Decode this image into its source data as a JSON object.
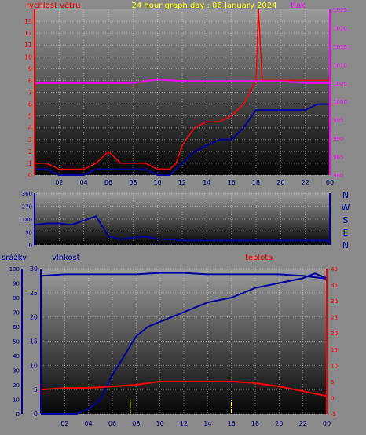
{
  "chart_data": [
    {
      "type": "line",
      "title": "24 hour graph day : 06 January 2024",
      "y_left_label": "rychlost větru",
      "y_right_label": "tlak",
      "x_ticks": [
        "02",
        "04",
        "06",
        "08",
        "10",
        "12",
        "14",
        "16",
        "18",
        "20",
        "22",
        "00"
      ],
      "x_range": [
        0,
        24
      ],
      "y_left_ticks": [
        0,
        1,
        2,
        3,
        4,
        5,
        6,
        7,
        8,
        9,
        10,
        11,
        12,
        13
      ],
      "y_left_range": [
        0,
        14
      ],
      "y_right_ticks": [
        980,
        985,
        990,
        995,
        1000,
        1005,
        1010,
        1015,
        1020,
        1025
      ],
      "y_right_range": [
        980,
        1025
      ],
      "grid": true,
      "colors": {
        "gust": "#ff0000",
        "avg": "#0000a0",
        "pressure": "#ff00ff",
        "left_axis": "#ff0000",
        "right_axis": "#ff00ff",
        "title": "#ffff00"
      },
      "series": [
        {
          "key": "gust",
          "x": [
            0,
            1,
            2,
            3,
            4,
            5,
            6,
            7,
            8,
            9,
            10,
            11,
            11.5,
            12,
            13,
            14,
            15,
            16,
            17,
            18,
            18.2,
            18.5,
            19,
            20,
            21,
            22,
            23,
            24
          ],
          "values": [
            1,
            1,
            0.5,
            0.5,
            0.5,
            1,
            2,
            1,
            1,
            1,
            0.5,
            0.5,
            1,
            2.5,
            4,
            4.5,
            4.5,
            5,
            6,
            8,
            14,
            8,
            8,
            8,
            8,
            8,
            8,
            8
          ]
        },
        {
          "key": "avg",
          "x": [
            0,
            1,
            2,
            3,
            4,
            5,
            6,
            7,
            8,
            9,
            10,
            11,
            12,
            13,
            14,
            15,
            16,
            17,
            18,
            19,
            20,
            21,
            22,
            23,
            24
          ],
          "values": [
            0.5,
            0.5,
            0,
            0,
            0,
            0.5,
            0.5,
            0.5,
            0.5,
            0.5,
            0,
            0,
            1,
            2,
            2.5,
            3,
            3,
            4,
            5.5,
            5.5,
            5.5,
            5.5,
            5.5,
            6,
            6
          ]
        },
        {
          "key": "pressure",
          "x": [
            0,
            2,
            4,
            6,
            8,
            10,
            12,
            14,
            16,
            18,
            20,
            22,
            24
          ],
          "values": [
            1005,
            1005,
            1005,
            1005,
            1005,
            1006,
            1005.5,
            1005.5,
            1005.5,
            1005.5,
            1005.5,
            1005,
            1005
          ]
        }
      ]
    },
    {
      "type": "scatter",
      "y_right_label": "",
      "direction_letters": [
        "N",
        "W",
        "S",
        "E",
        "N"
      ],
      "y_ticks": [
        0,
        90,
        180,
        270,
        360
      ],
      "y_range": [
        0,
        360
      ],
      "x_range": [
        0,
        24
      ],
      "grid": true,
      "colors": {
        "direction": "#0000a0"
      },
      "series": [
        {
          "key": "direction",
          "x": [
            0,
            1,
            2,
            3,
            4,
            5,
            6,
            7,
            8,
            9,
            10,
            11,
            12,
            13,
            14,
            15,
            16,
            17,
            18,
            19,
            20,
            21,
            22,
            23,
            24
          ],
          "values": [
            140,
            150,
            150,
            140,
            170,
            200,
            60,
            40,
            50,
            60,
            40,
            40,
            30,
            30,
            30,
            30,
            30,
            30,
            30,
            30,
            30,
            30,
            30,
            30,
            30
          ]
        }
      ]
    },
    {
      "type": "line",
      "y_left_label": "srážky",
      "y_mid_label": "vlhkost",
      "y_right_label": "teplota",
      "x_ticks": [
        "02",
        "04",
        "06",
        "08",
        "10",
        "12",
        "14",
        "16",
        "18",
        "20",
        "22",
        "00"
      ],
      "x_range": [
        0,
        24
      ],
      "y_left_ticks": [
        0,
        10,
        20,
        30,
        40,
        50,
        60,
        70,
        80,
        90,
        100
      ],
      "y_left_range": [
        0,
        100
      ],
      "y_mid_ticks": [
        0,
        5,
        10,
        15,
        20,
        25,
        30
      ],
      "y_mid_range": [
        0,
        30
      ],
      "y_right_ticks": [
        -5,
        0,
        5,
        10,
        15,
        20,
        25,
        30,
        35,
        40
      ],
      "y_right_range": [
        -5,
        40
      ],
      "grid": true,
      "colors": {
        "humidity": "#0000a0",
        "rain": "#0000a0",
        "temperature": "#ff0000",
        "rain_ticks": "#ffff00",
        "right_axis": "#ff0000"
      },
      "series": [
        {
          "key": "humidity",
          "x": [
            0,
            2,
            4,
            6,
            8,
            10,
            12,
            14,
            16,
            18,
            20,
            22,
            23,
            24
          ],
          "values": [
            95,
            96,
            96,
            96,
            96,
            97,
            97,
            96,
            96,
            96,
            96,
            95,
            94,
            93
          ]
        },
        {
          "key": "rain",
          "x": [
            0,
            3,
            4,
            5,
            6,
            7,
            8,
            9,
            10,
            12,
            14,
            16,
            18,
            20,
            22,
            23,
            24
          ],
          "values": [
            0,
            0,
            1,
            3,
            8,
            12,
            16,
            18,
            19,
            21,
            23,
            24,
            26,
            27,
            28,
            29,
            28
          ]
        },
        {
          "key": "temperature",
          "x": [
            0,
            2,
            4,
            6,
            8,
            10,
            12,
            14,
            16,
            18,
            20,
            22,
            24
          ],
          "values": [
            2.5,
            3,
            3,
            3.5,
            4,
            5,
            5,
            5,
            5,
            4.5,
            3.5,
            2,
            0.5
          ]
        }
      ]
    }
  ]
}
